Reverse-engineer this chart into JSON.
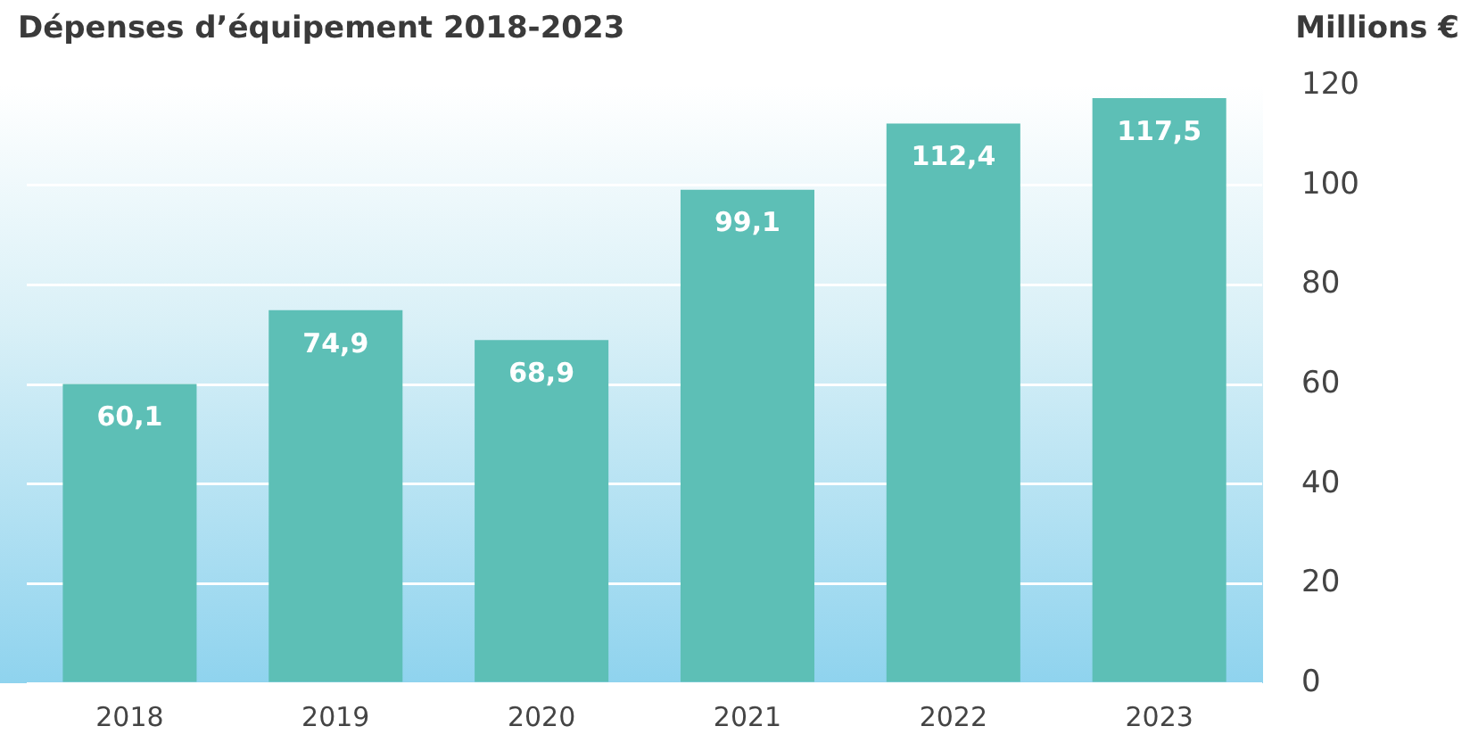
{
  "chart_data": {
    "type": "bar",
    "title": "Dépenses d’équipement 2018-2023",
    "ylabel": "Millions €",
    "categories": [
      "2018",
      "2019",
      "2020",
      "2021",
      "2022",
      "2023"
    ],
    "values": [
      60.1,
      74.9,
      68.9,
      99.1,
      112.4,
      117.5
    ],
    "value_labels": [
      "60,1",
      "74,9",
      "68,9",
      "99,1",
      "112,4",
      "117,5"
    ],
    "color": "#5dbfb6",
    "ylim": [
      0,
      120
    ],
    "yticks": [
      0,
      20,
      40,
      60,
      80,
      100,
      120
    ],
    "grid": "y",
    "legend": false
  }
}
